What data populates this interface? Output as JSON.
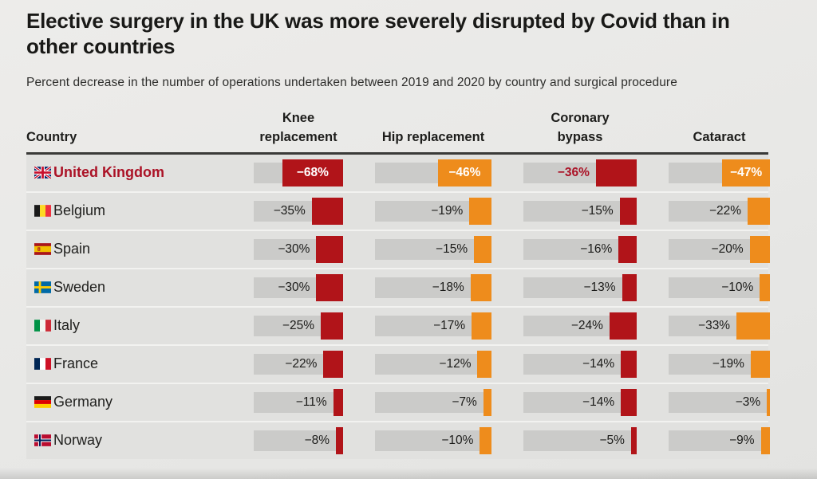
{
  "page": {
    "title": "Elective surgery in the UK was more severely disrupted by Covid than in other countries",
    "subtitle": "Percent decrease in the number of operations undertaken between 2019 and 2020 by country and surgical procedure"
  },
  "colors": {
    "bar_red": "#b11419",
    "bar_orange": "#ee8c1c",
    "highlight_text": "#ab1226",
    "track_gray": "#cbcbc9",
    "row_background": "#e1e1df",
    "page_background": "#e9e9e7",
    "header_rule": "#3a3a38",
    "text_dark": "#1d1d1b"
  },
  "table": {
    "country_header": "Country",
    "columns": [
      {
        "key": "knee",
        "label": "Knee\nreplacement",
        "bar_color": "bar_red"
      },
      {
        "key": "hip",
        "label": "Hip replacement",
        "bar_color": "bar_orange"
      },
      {
        "key": "coronary",
        "label": "Coronary\nbypass",
        "bar_color": "bar_red"
      },
      {
        "key": "cataract",
        "label": "Cataract",
        "bar_color": "bar_orange"
      }
    ],
    "rows": [
      {
        "country": "United Kingdom",
        "flag": "uk",
        "highlight": true,
        "cells": {
          "knee": {
            "label": "−68%",
            "pct": 68,
            "label_inside": true
          },
          "hip": {
            "label": "−46%",
            "pct": 46,
            "label_inside": true
          },
          "coronary": {
            "label": "−36%",
            "pct": 36,
            "label_inside": false
          },
          "cataract": {
            "label": "−47%",
            "pct": 47,
            "label_inside": true
          }
        }
      },
      {
        "country": "Belgium",
        "flag": "belgium",
        "highlight": false,
        "cells": {
          "knee": {
            "label": "−35%",
            "pct": 35,
            "label_inside": false
          },
          "hip": {
            "label": "−19%",
            "pct": 19,
            "label_inside": false
          },
          "coronary": {
            "label": "−15%",
            "pct": 15,
            "label_inside": false
          },
          "cataract": {
            "label": "−22%",
            "pct": 22,
            "label_inside": false
          }
        }
      },
      {
        "country": "Spain",
        "flag": "spain",
        "highlight": false,
        "cells": {
          "knee": {
            "label": "−30%",
            "pct": 30,
            "label_inside": false
          },
          "hip": {
            "label": "−15%",
            "pct": 15,
            "label_inside": false
          },
          "coronary": {
            "label": "−16%",
            "pct": 16,
            "label_inside": false
          },
          "cataract": {
            "label": "−20%",
            "pct": 20,
            "label_inside": false
          }
        }
      },
      {
        "country": "Sweden",
        "flag": "sweden",
        "highlight": false,
        "cells": {
          "knee": {
            "label": "−30%",
            "pct": 30,
            "label_inside": false
          },
          "hip": {
            "label": "−18%",
            "pct": 18,
            "label_inside": false
          },
          "coronary": {
            "label": "−13%",
            "pct": 13,
            "label_inside": false
          },
          "cataract": {
            "label": "−10%",
            "pct": 10,
            "label_inside": false
          }
        }
      },
      {
        "country": "Italy",
        "flag": "italy",
        "highlight": false,
        "cells": {
          "knee": {
            "label": "−25%",
            "pct": 25,
            "label_inside": false
          },
          "hip": {
            "label": "−17%",
            "pct": 17,
            "label_inside": false
          },
          "coronary": {
            "label": "−24%",
            "pct": 24,
            "label_inside": false
          },
          "cataract": {
            "label": "−33%",
            "pct": 33,
            "label_inside": false
          }
        }
      },
      {
        "country": "France",
        "flag": "france",
        "highlight": false,
        "cells": {
          "knee": {
            "label": "−22%",
            "pct": 22,
            "label_inside": false
          },
          "hip": {
            "label": "−12%",
            "pct": 12,
            "label_inside": false
          },
          "coronary": {
            "label": "−14%",
            "pct": 14,
            "label_inside": false
          },
          "cataract": {
            "label": "−19%",
            "pct": 19,
            "label_inside": false
          }
        }
      },
      {
        "country": "Germany",
        "flag": "germany",
        "highlight": false,
        "cells": {
          "knee": {
            "label": "−11%",
            "pct": 11,
            "label_inside": false
          },
          "hip": {
            "label": "−7%",
            "pct": 7,
            "label_inside": false
          },
          "coronary": {
            "label": "−14%",
            "pct": 14,
            "label_inside": false
          },
          "cataract": {
            "label": "−3%",
            "pct": 3,
            "label_inside": false
          }
        }
      },
      {
        "country": "Norway",
        "flag": "norway",
        "highlight": false,
        "cells": {
          "knee": {
            "label": "−8%",
            "pct": 8,
            "label_inside": false
          },
          "hip": {
            "label": "−10%",
            "pct": 10,
            "label_inside": false
          },
          "coronary": {
            "label": "−5%",
            "pct": 5,
            "label_inside": false
          },
          "cataract": {
            "label": "−9%",
            "pct": 9,
            "label_inside": false
          }
        }
      }
    ]
  },
  "chart_data": {
    "type": "bar",
    "orientation": "horizontal",
    "title": "Elective surgery in the UK was more severely disrupted by Covid than in other countries",
    "subtitle": "Percent decrease in the number of operations undertaken between 2019 and 2020 by country and surgical procedure",
    "unit": "%",
    "categories": [
      "United Kingdom",
      "Belgium",
      "Spain",
      "Sweden",
      "Italy",
      "France",
      "Germany",
      "Norway"
    ],
    "series": [
      {
        "name": "Knee replacement",
        "color": "#b11419",
        "values": [
          -68,
          -35,
          -30,
          -30,
          -25,
          -22,
          -11,
          -8
        ]
      },
      {
        "name": "Hip replacement",
        "color": "#ee8c1c",
        "values": [
          -46,
          -19,
          -15,
          -18,
          -17,
          -12,
          -7,
          -10
        ]
      },
      {
        "name": "Coronary bypass",
        "color": "#b11419",
        "values": [
          -36,
          -15,
          -16,
          -13,
          -24,
          -14,
          -14,
          -5
        ]
      },
      {
        "name": "Cataract",
        "color": "#ee8c1c",
        "values": [
          -47,
          -22,
          -20,
          -10,
          -33,
          -19,
          -3,
          -9
        ]
      }
    ],
    "value_range": [
      -100,
      0
    ],
    "grid": false,
    "legend_position": "none",
    "highlight_category": "United Kingdom"
  }
}
